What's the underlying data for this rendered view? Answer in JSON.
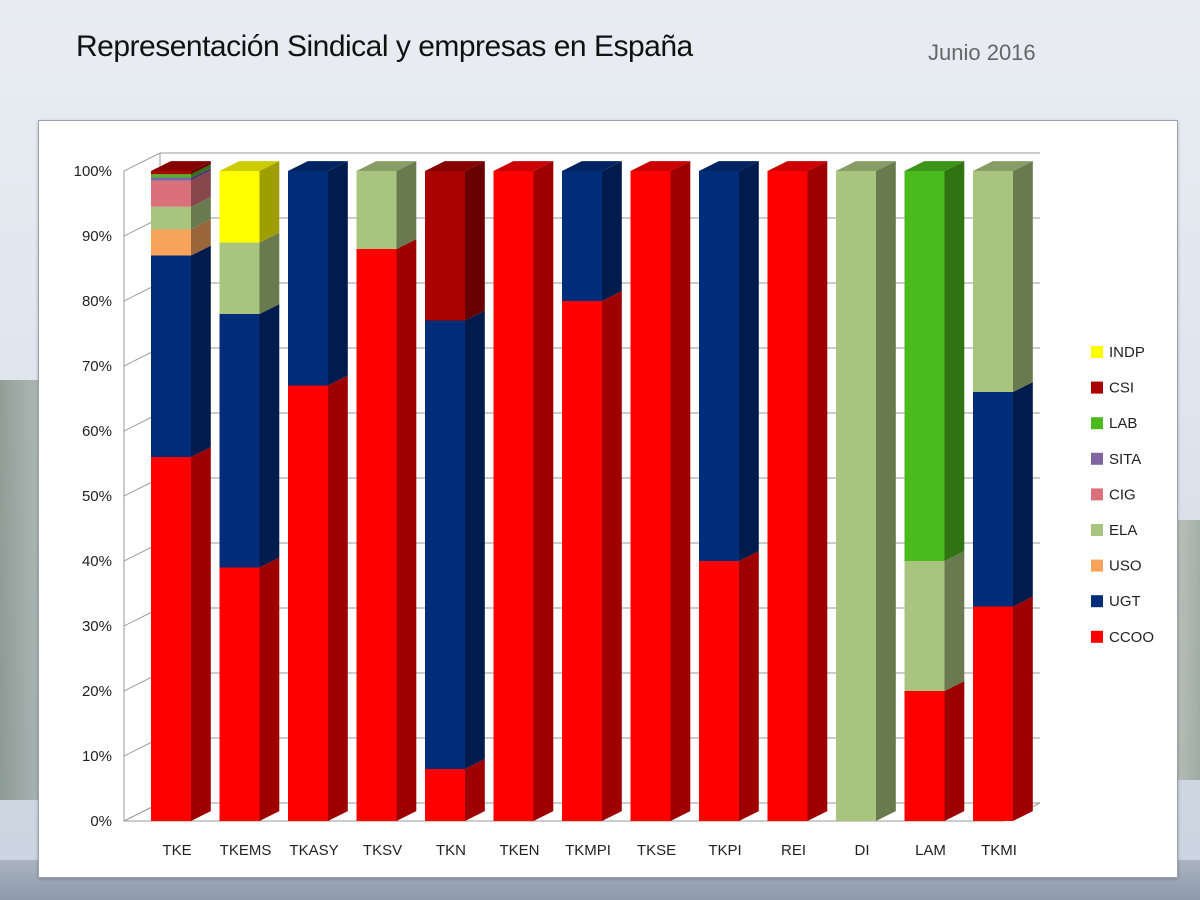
{
  "header": {
    "title": "Representación Sindical y empresas en España",
    "date": "Junio 2016"
  },
  "colors": {
    "CCOO": "#ff0000",
    "UGT": "#002c7a",
    "USO": "#f7a35c",
    "ELA": "#a9c47f",
    "CIG": "#d9707a",
    "SITA": "#8064a2",
    "LAB": "#4bba1e",
    "CSI": "#a90000",
    "INDP": "#ffff00"
  },
  "chart_data": {
    "type": "bar",
    "stacked": true,
    "percent": true,
    "three_d": true,
    "ylim": [
      0,
      100
    ],
    "yticks": [
      "0%",
      "10%",
      "20%",
      "30%",
      "40%",
      "50%",
      "60%",
      "70%",
      "80%",
      "90%",
      "100%"
    ],
    "categories": [
      "TKE",
      "TKEMS",
      "TKASY",
      "TKSV",
      "TKN",
      "TKEN",
      "TKMPI",
      "TKSE",
      "TKPI",
      "REI",
      "DI",
      "LAM",
      "TKMI"
    ],
    "series": [
      {
        "name": "CCOO",
        "values": [
          56,
          39,
          67,
          88,
          8,
          100,
          80,
          100,
          40,
          100,
          0,
          20,
          33
        ]
      },
      {
        "name": "UGT",
        "values": [
          31,
          39,
          33,
          0,
          69,
          0,
          20,
          0,
          60,
          0,
          0,
          0,
          33
        ]
      },
      {
        "name": "USO",
        "values": [
          4,
          0,
          0,
          0,
          0,
          0,
          0,
          0,
          0,
          0,
          0,
          0,
          0
        ]
      },
      {
        "name": "ELA",
        "values": [
          3.5,
          11,
          0,
          12,
          0,
          0,
          0,
          0,
          0,
          0,
          100,
          20,
          34
        ]
      },
      {
        "name": "CIG",
        "values": [
          4,
          0,
          0,
          0,
          0,
          0,
          0,
          0,
          0,
          0,
          0,
          0,
          0
        ]
      },
      {
        "name": "SITA",
        "values": [
          0.5,
          0,
          0,
          0,
          0,
          0,
          0,
          0,
          0,
          0,
          0,
          0,
          0
        ]
      },
      {
        "name": "LAB",
        "values": [
          0.5,
          0,
          0,
          0,
          0,
          0,
          0,
          0,
          0,
          0,
          0,
          60,
          0
        ]
      },
      {
        "name": "CSI",
        "values": [
          0.5,
          0,
          0,
          0,
          23,
          0,
          0,
          0,
          0,
          0,
          0,
          0,
          0
        ]
      },
      {
        "name": "INDP",
        "values": [
          0,
          11,
          0,
          0,
          0,
          0,
          0,
          0,
          0,
          0,
          0,
          0,
          0
        ]
      }
    ],
    "legend": {
      "position": "right",
      "order": [
        "INDP",
        "CSI",
        "LAB",
        "SITA",
        "CIG",
        "ELA",
        "USO",
        "UGT",
        "CCOO"
      ]
    },
    "grid": true
  }
}
